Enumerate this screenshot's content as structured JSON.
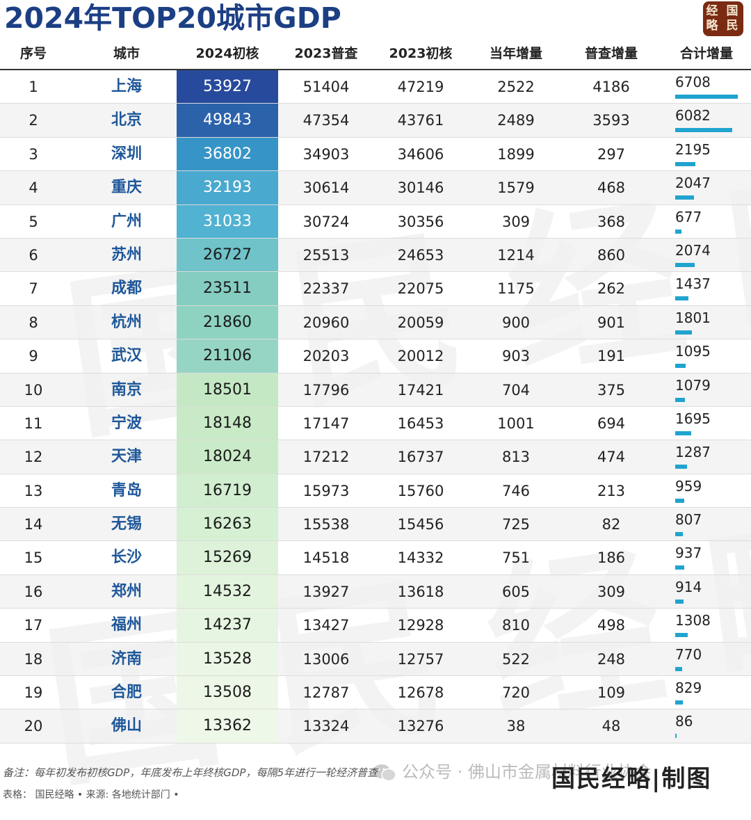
{
  "title": "2024年TOP20城市GDP",
  "logo": "经国略民",
  "watermark": "国民经略",
  "columns": [
    "序号",
    "城市",
    "2024初核",
    "2023普查",
    "2023初核",
    "当年增量",
    "普查增量",
    "合计增量"
  ],
  "rows": [
    {
      "rank": "1",
      "city": "上海",
      "gdp2024": "53927",
      "census2023": "51404",
      "prelim2023": "47219",
      "yearly_inc": "2522",
      "census_inc": "4186",
      "total_inc": "6708",
      "gdp_bg": "#274a9c",
      "gdp_color": "#ffffff"
    },
    {
      "rank": "2",
      "city": "北京",
      "gdp2024": "49843",
      "census2023": "47354",
      "prelim2023": "43761",
      "yearly_inc": "2489",
      "census_inc": "3593",
      "total_inc": "6082",
      "gdp_bg": "#2b62aa",
      "gdp_color": "#ffffff"
    },
    {
      "rank": "3",
      "city": "深圳",
      "gdp2024": "36802",
      "census2023": "34903",
      "prelim2023": "34606",
      "yearly_inc": "1899",
      "census_inc": "297",
      "total_inc": "2195",
      "gdp_bg": "#3794c6",
      "gdp_color": "#ffffff"
    },
    {
      "rank": "4",
      "city": "重庆",
      "gdp2024": "32193",
      "census2023": "30614",
      "prelim2023": "30146",
      "yearly_inc": "1579",
      "census_inc": "468",
      "total_inc": "2047",
      "gdp_bg": "#4aa9cf",
      "gdp_color": "#ffffff"
    },
    {
      "rank": "5",
      "city": "广州",
      "gdp2024": "31033",
      "census2023": "30724",
      "prelim2023": "30356",
      "yearly_inc": "309",
      "census_inc": "368",
      "total_inc": "677",
      "gdp_bg": "#51b2d2",
      "gdp_color": "#ffffff"
    },
    {
      "rank": "6",
      "city": "苏州",
      "gdp2024": "26727",
      "census2023": "25513",
      "prelim2023": "24653",
      "yearly_inc": "1214",
      "census_inc": "860",
      "total_inc": "2074",
      "gdp_bg": "#6fc3c9",
      "gdp_color": "#1a1a1a"
    },
    {
      "rank": "7",
      "city": "成都",
      "gdp2024": "23511",
      "census2023": "22337",
      "prelim2023": "22075",
      "yearly_inc": "1175",
      "census_inc": "262",
      "total_inc": "1437",
      "gdp_bg": "#85cdc1",
      "gdp_color": "#1a1a1a"
    },
    {
      "rank": "8",
      "city": "杭州",
      "gdp2024": "21860",
      "census2023": "20960",
      "prelim2023": "20059",
      "yearly_inc": "900",
      "census_inc": "901",
      "total_inc": "1801",
      "gdp_bg": "#8ed2c2",
      "gdp_color": "#1a1a1a"
    },
    {
      "rank": "9",
      "city": "武汉",
      "gdp2024": "21106",
      "census2023": "20203",
      "prelim2023": "20012",
      "yearly_inc": "903",
      "census_inc": "191",
      "total_inc": "1095",
      "gdp_bg": "#96d5c3",
      "gdp_color": "#1a1a1a"
    },
    {
      "rank": "10",
      "city": "南京",
      "gdp2024": "18501",
      "census2023": "17796",
      "prelim2023": "17421",
      "yearly_inc": "704",
      "census_inc": "375",
      "total_inc": "1079",
      "gdp_bg": "#c5e8c4",
      "gdp_color": "#1a1a1a"
    },
    {
      "rank": "11",
      "city": "宁波",
      "gdp2024": "18148",
      "census2023": "17147",
      "prelim2023": "16453",
      "yearly_inc": "1001",
      "census_inc": "694",
      "total_inc": "1695",
      "gdp_bg": "#c8eac6",
      "gdp_color": "#1a1a1a"
    },
    {
      "rank": "12",
      "city": "天津",
      "gdp2024": "18024",
      "census2023": "17212",
      "prelim2023": "16737",
      "yearly_inc": "813",
      "census_inc": "474",
      "total_inc": "1287",
      "gdp_bg": "#caebc8",
      "gdp_color": "#1a1a1a"
    },
    {
      "rank": "13",
      "city": "青岛",
      "gdp2024": "16719",
      "census2023": "15973",
      "prelim2023": "15760",
      "yearly_inc": "746",
      "census_inc": "213",
      "total_inc": "959",
      "gdp_bg": "#d2eed0",
      "gdp_color": "#1a1a1a"
    },
    {
      "rank": "14",
      "city": "无锡",
      "gdp2024": "16263",
      "census2023": "15538",
      "prelim2023": "15456",
      "yearly_inc": "725",
      "census_inc": "82",
      "total_inc": "807",
      "gdp_bg": "#d6f0d3",
      "gdp_color": "#1a1a1a"
    },
    {
      "rank": "15",
      "city": "长沙",
      "gdp2024": "15269",
      "census2023": "14518",
      "prelim2023": "14332",
      "yearly_inc": "751",
      "census_inc": "186",
      "total_inc": "937",
      "gdp_bg": "#ddf2d9",
      "gdp_color": "#1a1a1a"
    },
    {
      "rank": "16",
      "city": "郑州",
      "gdp2024": "14532",
      "census2023": "13927",
      "prelim2023": "13618",
      "yearly_inc": "605",
      "census_inc": "309",
      "total_inc": "914",
      "gdp_bg": "#e3f4de",
      "gdp_color": "#1a1a1a"
    },
    {
      "rank": "17",
      "city": "福州",
      "gdp2024": "14237",
      "census2023": "13427",
      "prelim2023": "12928",
      "yearly_inc": "810",
      "census_inc": "498",
      "total_inc": "1308",
      "gdp_bg": "#e6f5e1",
      "gdp_color": "#1a1a1a"
    },
    {
      "rank": "18",
      "city": "济南",
      "gdp2024": "13528",
      "census2023": "13006",
      "prelim2023": "12757",
      "yearly_inc": "522",
      "census_inc": "248",
      "total_inc": "770",
      "gdp_bg": "#ebf7e6",
      "gdp_color": "#1a1a1a"
    },
    {
      "rank": "19",
      "city": "合肥",
      "gdp2024": "13508",
      "census2023": "12787",
      "prelim2023": "12678",
      "yearly_inc": "720",
      "census_inc": "109",
      "total_inc": "829",
      "gdp_bg": "#ecf7e7",
      "gdp_color": "#1a1a1a"
    },
    {
      "rank": "20",
      "city": "佛山",
      "gdp2024": "13362",
      "census2023": "13324",
      "prelim2023": "13276",
      "yearly_inc": "38",
      "census_inc": "48",
      "total_inc": "86",
      "gdp_bg": "#eef8e9",
      "gdp_color": "#1a1a1a"
    }
  ],
  "chart_data": {
    "type": "table",
    "title": "2024年TOP20城市GDP",
    "columns": [
      "序号",
      "城市",
      "2024初核",
      "2023普查",
      "2023初核",
      "当年增量",
      "普查增量",
      "合计增量"
    ],
    "bar_series": {
      "column": "合计增量",
      "values": [
        6708,
        6082,
        2195,
        2047,
        677,
        2074,
        1437,
        1801,
        1095,
        1079,
        1695,
        1287,
        959,
        807,
        937,
        914,
        1308,
        770,
        829,
        86
      ],
      "max": 6708
    },
    "accent_color": "#20a4cf",
    "title_color": "#1c3f84"
  },
  "footer": {
    "note": "备注：每年初发布初核GDP，年底发布上年终核GDP，每隔5年进行一轮经济普查",
    "source": "表格： 国民经略 • 来源: 各地统计部门 •",
    "wechat": "公众号 · 佛山市金属材料行业协会",
    "signature": "国民经略|制图"
  }
}
